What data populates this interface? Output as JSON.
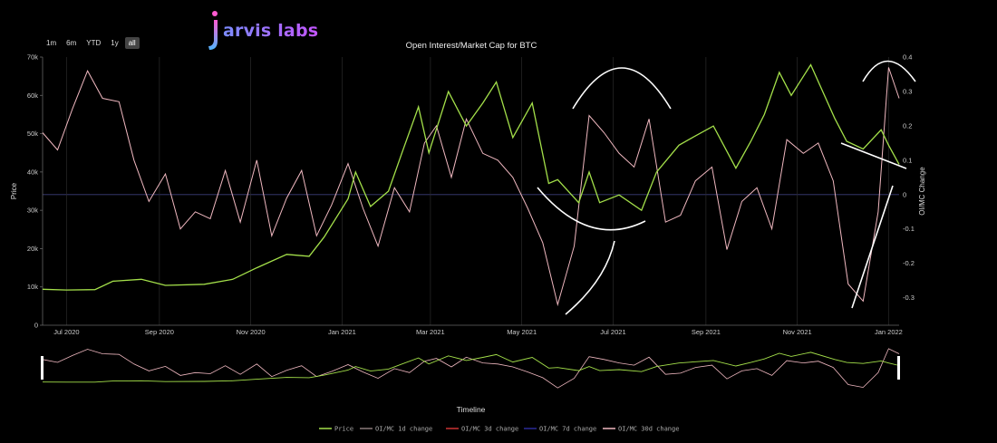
{
  "logo": {
    "text": "arvis labs"
  },
  "range_selector": [
    "1m",
    "6m",
    "YTD",
    "1y",
    "all"
  ],
  "range_selected": "all",
  "colors": {
    "price": "#a4e04a",
    "oi_1d": "#8a7a7a",
    "oi_3d": "#cc3333",
    "oi_7d": "#2a2a99",
    "oi_30d": "#f0b8c0",
    "background": "#000000",
    "grid": "#2a2a2a"
  },
  "chart_data": {
    "type": "line",
    "title": "Open Interest/Market Cap for BTC",
    "ylabel": "Price",
    "y2label": "OI/MC Change",
    "xlabel": "Timeline",
    "ylim": [
      0,
      70000
    ],
    "y2lim": [
      -0.38,
      0.4
    ],
    "x_range": [
      "2020-06-15",
      "2022-01-08"
    ],
    "y_ticks": [
      "0",
      "10k",
      "20k",
      "30k",
      "40k",
      "50k",
      "60k",
      "70k"
    ],
    "y2_ticks": [
      "-0.3",
      "-0.2",
      "-0.1",
      "0",
      "0.1",
      "0.2",
      "0.3",
      "0.4"
    ],
    "x_ticks": [
      {
        "date": "2020-07-01",
        "label": "Jul 2020"
      },
      {
        "date": "2020-09-01",
        "label": "Sep 2020"
      },
      {
        "date": "2020-11-01",
        "label": "Nov 2020"
      },
      {
        "date": "2021-01-01",
        "label": "Jan 2021"
      },
      {
        "date": "2021-03-01",
        "label": "Mar 2021"
      },
      {
        "date": "2021-05-01",
        "label": "May 2021"
      },
      {
        "date": "2021-07-01",
        "label": "Jul 2021"
      },
      {
        "date": "2021-09-01",
        "label": "Sep 2021"
      },
      {
        "date": "2021-11-01",
        "label": "Nov 2021"
      },
      {
        "date": "2022-01-01",
        "label": "Jan 2022"
      }
    ],
    "legend_position": "bottom",
    "series": [
      {
        "name": "Price",
        "axis": "left",
        "points": [
          [
            "2020-06-15",
            9400
          ],
          [
            "2020-07-01",
            9200
          ],
          [
            "2020-07-20",
            9300
          ],
          [
            "2020-08-01",
            11500
          ],
          [
            "2020-08-20",
            12000
          ],
          [
            "2020-09-05",
            10400
          ],
          [
            "2020-10-01",
            10700
          ],
          [
            "2020-10-20",
            12000
          ],
          [
            "2020-11-05",
            15000
          ],
          [
            "2020-11-25",
            18500
          ],
          [
            "2020-12-10",
            18000
          ],
          [
            "2020-12-20",
            23000
          ],
          [
            "2021-01-05",
            33000
          ],
          [
            "2021-01-10",
            40000
          ],
          [
            "2021-01-20",
            31000
          ],
          [
            "2021-02-01",
            35000
          ],
          [
            "2021-02-10",
            45000
          ],
          [
            "2021-02-21",
            57000
          ],
          [
            "2021-02-28",
            45000
          ],
          [
            "2021-03-13",
            61000
          ],
          [
            "2021-03-25",
            52000
          ],
          [
            "2021-04-05",
            58000
          ],
          [
            "2021-04-14",
            63500
          ],
          [
            "2021-04-25",
            49000
          ],
          [
            "2021-05-08",
            58000
          ],
          [
            "2021-05-19",
            37000
          ],
          [
            "2021-05-25",
            38000
          ],
          [
            "2021-06-08",
            32000
          ],
          [
            "2021-06-15",
            40000
          ],
          [
            "2021-06-22",
            32000
          ],
          [
            "2021-07-05",
            34000
          ],
          [
            "2021-07-20",
            30000
          ],
          [
            "2021-07-30",
            40000
          ],
          [
            "2021-08-14",
            47000
          ],
          [
            "2021-08-23",
            49000
          ],
          [
            "2021-09-06",
            52000
          ],
          [
            "2021-09-21",
            41000
          ],
          [
            "2021-10-01",
            48000
          ],
          [
            "2021-10-10",
            55000
          ],
          [
            "2021-10-20",
            66000
          ],
          [
            "2021-10-28",
            60000
          ],
          [
            "2021-11-10",
            68000
          ],
          [
            "2021-11-26",
            54000
          ],
          [
            "2021-12-04",
            48000
          ],
          [
            "2021-12-15",
            46000
          ],
          [
            "2021-12-27",
            51000
          ],
          [
            "2022-01-01",
            47000
          ],
          [
            "2022-01-08",
            42000
          ]
        ]
      },
      {
        "name": "OI/MC 1d change",
        "axis": "right"
      },
      {
        "name": "OI/MC 3d change",
        "axis": "right"
      },
      {
        "name": "OI/MC 7d change",
        "axis": "right"
      },
      {
        "name": "OI/MC 30d change",
        "axis": "right",
        "points": [
          [
            "2020-06-15",
            0.18
          ],
          [
            "2020-06-25",
            0.13
          ],
          [
            "2020-07-05",
            0.25
          ],
          [
            "2020-07-15",
            0.36
          ],
          [
            "2020-07-25",
            0.28
          ],
          [
            "2020-08-05",
            0.27
          ],
          [
            "2020-08-15",
            0.1
          ],
          [
            "2020-08-25",
            -0.02
          ],
          [
            "2020-09-05",
            0.06
          ],
          [
            "2020-09-15",
            -0.1
          ],
          [
            "2020-09-25",
            -0.05
          ],
          [
            "2020-10-05",
            -0.07
          ],
          [
            "2020-10-15",
            0.07
          ],
          [
            "2020-10-25",
            -0.08
          ],
          [
            "2020-11-05",
            0.1
          ],
          [
            "2020-11-15",
            -0.12
          ],
          [
            "2020-11-25",
            -0.01
          ],
          [
            "2020-12-05",
            0.07
          ],
          [
            "2020-12-15",
            -0.12
          ],
          [
            "2020-12-25",
            -0.03
          ],
          [
            "2021-01-05",
            0.09
          ],
          [
            "2021-01-15",
            -0.04
          ],
          [
            "2021-01-25",
            -0.15
          ],
          [
            "2021-02-05",
            0.02
          ],
          [
            "2021-02-15",
            -0.05
          ],
          [
            "2021-02-25",
            0.15
          ],
          [
            "2021-03-05",
            0.2
          ],
          [
            "2021-03-15",
            0.05
          ],
          [
            "2021-03-25",
            0.22
          ],
          [
            "2021-04-05",
            0.12
          ],
          [
            "2021-04-15",
            0.1
          ],
          [
            "2021-04-25",
            0.05
          ],
          [
            "2021-05-05",
            -0.04
          ],
          [
            "2021-05-15",
            -0.14
          ],
          [
            "2021-05-25",
            -0.32
          ],
          [
            "2021-06-05",
            -0.15
          ],
          [
            "2021-06-15",
            0.23
          ],
          [
            "2021-06-25",
            0.18
          ],
          [
            "2021-07-05",
            0.12
          ],
          [
            "2021-07-15",
            0.08
          ],
          [
            "2021-07-25",
            0.22
          ],
          [
            "2021-08-05",
            -0.08
          ],
          [
            "2021-08-15",
            -0.06
          ],
          [
            "2021-08-25",
            0.04
          ],
          [
            "2021-09-05",
            0.08
          ],
          [
            "2021-09-15",
            -0.16
          ],
          [
            "2021-09-25",
            -0.02
          ],
          [
            "2021-10-05",
            0.02
          ],
          [
            "2021-10-15",
            -0.1
          ],
          [
            "2021-10-25",
            0.16
          ],
          [
            "2021-11-05",
            0.12
          ],
          [
            "2021-11-15",
            0.15
          ],
          [
            "2021-11-25",
            0.04
          ],
          [
            "2021-12-05",
            -0.26
          ],
          [
            "2021-12-15",
            -0.31
          ],
          [
            "2021-12-25",
            -0.05
          ],
          [
            "2022-01-01",
            0.37
          ],
          [
            "2022-01-08",
            0.28
          ]
        ]
      }
    ]
  }
}
